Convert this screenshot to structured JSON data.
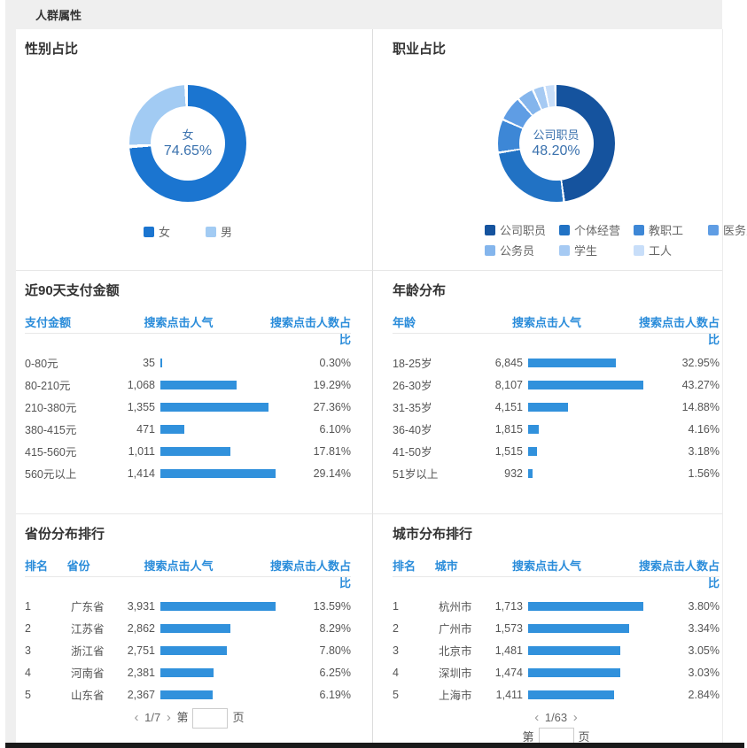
{
  "page": {
    "title": "人群属性"
  },
  "colors": {
    "accent_blue": "#2a8cda",
    "bar": "#3191dc",
    "band_gray": "#efefef",
    "donut_center_text": "#3b72ae",
    "gender_female": "#1b75d0",
    "gender_male": "#a2cbf3"
  },
  "panels": {
    "gender": {
      "title": "性别占比"
    },
    "occupation": {
      "title": "职业占比"
    },
    "payment": {
      "title": "近90天支付金额",
      "headers": [
        "支付金额",
        "搜索点击人气",
        "搜索点击人数占比"
      ]
    },
    "age": {
      "title": "年龄分布",
      "headers": [
        "年龄",
        "搜索点击人气",
        "搜索点击人数占比"
      ]
    },
    "province": {
      "title": "省份分布排行",
      "headers": [
        "排名",
        "省份",
        "搜索点击人气",
        "搜索点击人数占比"
      ],
      "pagination": {
        "prev": "‹",
        "label": "1/7",
        "next": "›",
        "jump_prefix": "第",
        "jump_suffix": "页",
        "input_value": ""
      }
    },
    "city": {
      "title": "城市分布排行",
      "headers": [
        "排名",
        "城市",
        "搜索点击人气",
        "搜索点击人数占比"
      ],
      "pagination": {
        "prev": "‹",
        "label": "1/63",
        "next": "›",
        "jump_prefix": "第",
        "jump_suffix": "页",
        "input_value": ""
      }
    }
  },
  "chart_data": [
    {
      "id": "gender",
      "type": "pie",
      "title": "性别占比",
      "labels": [
        "女",
        "男"
      ],
      "values": [
        74.65,
        25.35
      ],
      "colors": [
        "#1b75d0",
        "#a2cbf3"
      ],
      "gap_deg": 3.5,
      "center_label": "女",
      "center_value": "74.65%",
      "legend_position": "bottom"
    },
    {
      "id": "occupation",
      "type": "pie",
      "title": "职业占比",
      "labels": [
        "公司职员",
        "个体经营",
        "教职工",
        "医务人员",
        "公务员",
        "学生",
        "工人"
      ],
      "values": [
        48.2,
        24.5,
        9.2,
        7.0,
        4.7,
        3.3,
        3.0
      ],
      "values_note": "only 48.20% labeled on chart; remaining slice shares estimated from arc angles",
      "colors": [
        "#15539e",
        "#2172c4",
        "#3d87d6",
        "#5f9de4",
        "#84b5ec",
        "#a6caf3",
        "#c8def9"
      ],
      "gap_deg": 2.2,
      "center_label": "公司职员",
      "center_value": "48.20%",
      "legend_position": "bottom"
    },
    {
      "id": "payment",
      "type": "bar",
      "title": "近90天支付金额",
      "categories": [
        "0-80元",
        "80-210元",
        "210-380元",
        "380-415元",
        "415-560元",
        "560元以上"
      ],
      "values": [
        35,
        1068,
        1355,
        471,
        1011,
        1414
      ],
      "value_labels": [
        "35",
        "1,068",
        "1,355",
        "471",
        "1,011",
        "1,414"
      ],
      "pct": [
        0.3,
        19.29,
        27.36,
        6.1,
        17.81,
        29.14
      ],
      "pct_labels": [
        "0.30%",
        "19.29%",
        "27.36%",
        "6.10%",
        "17.81%",
        "29.14%"
      ]
    },
    {
      "id": "age",
      "type": "bar",
      "title": "年龄分布",
      "categories": [
        "18-25岁",
        "26-30岁",
        "31-35岁",
        "36-40岁",
        "41-50岁",
        "51岁以上"
      ],
      "values": [
        6845,
        8107,
        4151,
        1815,
        1515,
        932
      ],
      "value_labels": [
        "6,845",
        "8,107",
        "4,151",
        "1,815",
        "1,515",
        "932"
      ],
      "pct": [
        32.95,
        43.27,
        14.88,
        4.16,
        3.18,
        1.56
      ],
      "pct_labels": [
        "32.95%",
        "43.27%",
        "14.88%",
        "4.16%",
        "3.18%",
        "1.56%"
      ]
    },
    {
      "id": "province",
      "type": "bar",
      "title": "省份分布排行",
      "ranks": [
        "1",
        "2",
        "3",
        "4",
        "5"
      ],
      "categories": [
        "广东省",
        "江苏省",
        "浙江省",
        "河南省",
        "山东省"
      ],
      "values": [
        3931,
        2862,
        2751,
        2381,
        2367
      ],
      "value_labels": [
        "3,931",
        "2,862",
        "2,751",
        "2,381",
        "2,367"
      ],
      "pct": [
        13.59,
        8.29,
        7.8,
        6.25,
        6.19
      ],
      "pct_labels": [
        "13.59%",
        "8.29%",
        "7.80%",
        "6.25%",
        "6.19%"
      ]
    },
    {
      "id": "city",
      "type": "bar",
      "title": "城市分布排行",
      "ranks": [
        "1",
        "2",
        "3",
        "4",
        "5"
      ],
      "categories": [
        "杭州市",
        "广州市",
        "北京市",
        "深圳市",
        "上海市"
      ],
      "values": [
        1713,
        1573,
        1481,
        1474,
        1411
      ],
      "value_labels": [
        "1,713",
        "1,573",
        "1,481",
        "1,474",
        "1,411"
      ],
      "pct": [
        3.8,
        3.34,
        3.05,
        3.03,
        2.84
      ],
      "pct_labels": [
        "3.80%",
        "3.34%",
        "3.05%",
        "3.03%",
        "2.84%"
      ]
    }
  ]
}
